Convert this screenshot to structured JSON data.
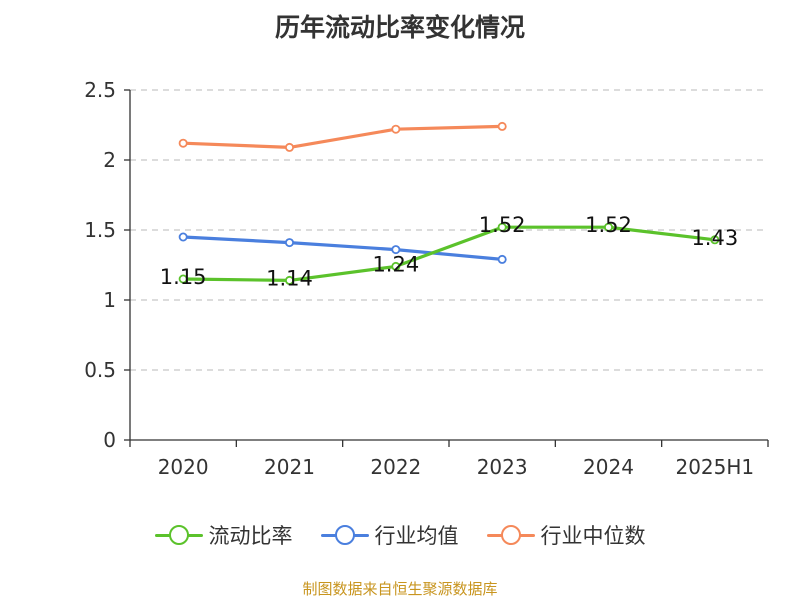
{
  "chart_data": {
    "type": "line",
    "title": "历年流动比率变化情况",
    "categories": [
      "2020",
      "2021",
      "2022",
      "2023",
      "2024",
      "2025H1"
    ],
    "y_ticks": [
      "0",
      "0.5",
      "1",
      "1.5",
      "2",
      "2.5"
    ],
    "ylim": [
      0,
      2.5
    ],
    "grid": "horizontal dashed",
    "legend_position": "bottom",
    "series": [
      {
        "name": "流动比率",
        "color": "#5bc22b",
        "values": [
          1.15,
          1.14,
          1.24,
          1.52,
          1.52,
          1.43
        ],
        "labels": [
          "1.15",
          "1.14",
          "1.24",
          "1.52",
          "1.52",
          "1.43"
        ]
      },
      {
        "name": "行业均值",
        "color": "#4a7fde",
        "values": [
          1.45,
          1.41,
          1.36,
          1.29,
          null,
          null
        ]
      },
      {
        "name": "行业中位数",
        "color": "#f5895a",
        "values": [
          2.12,
          2.09,
          2.22,
          2.24,
          null,
          null
        ]
      }
    ]
  },
  "source": "制图数据来自恒生聚源数据库"
}
